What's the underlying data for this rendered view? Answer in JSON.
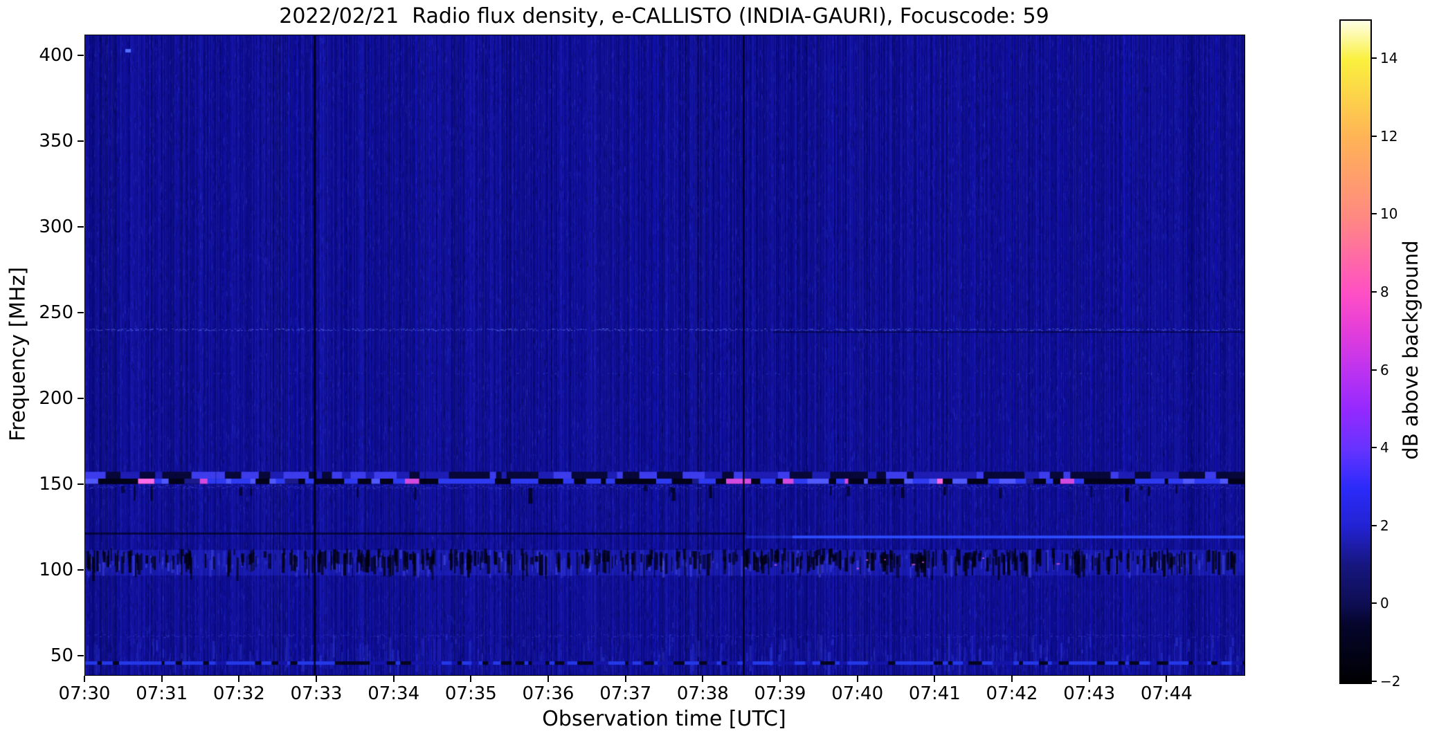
{
  "chart_data": {
    "type": "heatmap",
    "title": "2022/02/21  Radio flux density, e-CALLISTO (INDIA-GAURI), Focuscode: 59",
    "xlabel": "Observation time [UTC]",
    "ylabel": "Frequency [MHz]",
    "x_axis": {
      "min": 0,
      "max": 15,
      "unit": "minutes after 07:30 UTC"
    },
    "y_axis": {
      "min": 39,
      "max": 412,
      "unit": "MHz"
    },
    "x_ticks": [
      "07:30",
      "07:31",
      "07:32",
      "07:33",
      "07:34",
      "07:35",
      "07:36",
      "07:37",
      "07:38",
      "07:39",
      "07:40",
      "07:41",
      "07:42",
      "07:43",
      "07:44"
    ],
    "y_ticks": [
      400,
      350,
      300,
      250,
      200,
      150,
      100,
      50
    ],
    "grid": false,
    "colorbar": {
      "label": "dB above background",
      "range": [
        -2,
        15
      ],
      "ticks": [
        14,
        12,
        10,
        8,
        6,
        4,
        2,
        0,
        -2
      ],
      "tick_labels": [
        "14",
        "12",
        "10",
        "8",
        "6",
        "4",
        "2",
        "0",
        "−2"
      ],
      "colormap_name": "gnuplot2-like",
      "stops": [
        {
          "v": -2,
          "color": "#000002"
        },
        {
          "v": -0.5,
          "color": "#05052c"
        },
        {
          "v": 0,
          "color": "#0d0d52"
        },
        {
          "v": 1,
          "color": "#16167e"
        },
        {
          "v": 2,
          "color": "#2222d2"
        },
        {
          "v": 3,
          "color": "#2b2bfa"
        },
        {
          "v": 4,
          "color": "#6633ff"
        },
        {
          "v": 5,
          "color": "#9429ff"
        },
        {
          "v": 6,
          "color": "#bc33f0"
        },
        {
          "v": 7,
          "color": "#e23dda"
        },
        {
          "v": 8,
          "color": "#ff4fc4"
        },
        {
          "v": 10,
          "color": "#ff8a80"
        },
        {
          "v": 12,
          "color": "#ffb356"
        },
        {
          "v": 14,
          "color": "#faf03e"
        },
        {
          "v": 15,
          "color": "#ffffe6"
        }
      ]
    },
    "background_level_db": 0.5,
    "background_base_color": "#0a0a8a",
    "features": [
      {
        "type": "dot",
        "t": 0.52,
        "f": 404,
        "w": 8,
        "h": 5,
        "color": "#4f6fff",
        "note": "bright pixel near 404 MHz at ~07:30:30"
      },
      {
        "type": "speckle_hline",
        "f": 240.5,
        "t0": 0,
        "t1": 15,
        "density": 0.5,
        "thick": 3,
        "color": "rgba(110,130,255,0.5)",
        "note": "faint speckled line ~240 MHz"
      },
      {
        "type": "hline",
        "f": 239,
        "t0": 8.9,
        "t1": 15,
        "h": 2,
        "color": "rgba(3,3,45,0.6)",
        "note": "thin dark line ~239 MHz right half"
      },
      {
        "type": "speckle_hline",
        "f": 215,
        "t0": 0,
        "t1": 15,
        "density": 0.08,
        "thick": 2,
        "color": "rgba(90,110,255,0.3)"
      },
      {
        "type": "blocks",
        "f0": 157.5,
        "f1": 153.5,
        "step": [
          6,
          26
        ],
        "palette": [
          [
            "#07073a",
            0.4
          ],
          [
            "#1d1db4",
            0.33
          ],
          [
            "#3c3cec",
            0.27
          ]
        ],
        "note": "upper edge of 150 MHz interference band"
      },
      {
        "type": "blocks",
        "f0": 153.5,
        "f1": 150.5,
        "base": "#020218",
        "step": [
          5,
          24
        ],
        "palette": [
          [
            "#020218",
            0.36
          ],
          [
            "#2e3af2",
            0.4
          ],
          [
            "#5058ff",
            0.11
          ],
          [
            "#d44ae0",
            0.05
          ],
          [
            "#ff6ae8",
            0.02
          ],
          [
            "#1a1a8c",
            0.06
          ]
        ],
        "note": "segmented black/blue/magenta band at ~152 MHz"
      },
      {
        "type": "speckle_hline",
        "f": 148.8,
        "t0": 0,
        "t1": 15,
        "density": 0.65,
        "thick": 6,
        "color": "rgba(70,80,235,0.45)"
      },
      {
        "type": "streaks",
        "f0": 150,
        "jitter": 5,
        "count": 26,
        "wmax": 5,
        "hmin": 5,
        "hmax": 18,
        "rgb": "0,0,12",
        "a0": 0.5,
        "note": "dark dips below 150 MHz band"
      },
      {
        "type": "hline",
        "f": 121.5,
        "t0": 0,
        "t1": 8.55,
        "h": 3,
        "color": "rgba(2,2,30,0.7)",
        "note": "dark line ~121 MHz left portion"
      },
      {
        "type": "hline",
        "f": 119.5,
        "t0": 8.55,
        "t1": 9.15,
        "h": 4,
        "color": "rgba(45,75,255,0.45)"
      },
      {
        "type": "hline",
        "f": 119.5,
        "t0": 9.15,
        "t1": 15,
        "h": 4,
        "color": "#2d4bff",
        "note": "bright carrier ~119 MHz after 07:39"
      },
      {
        "type": "band_glow",
        "f0": 112,
        "f1": 97,
        "color": "rgba(48,52,235,0.30)",
        "note": "FM broadcast band 97-112 MHz"
      },
      {
        "type": "band_columns",
        "f0": 112,
        "f1": 97,
        "density": 0.5,
        "rgb": "85,95,255",
        "a0": 0.15,
        "a1": 0.3
      },
      {
        "type": "streaks",
        "f0": 113,
        "jitter": 14,
        "count": 520,
        "wmax": 4,
        "hmin": 8,
        "hmax": 26,
        "rgb": "0,0,14",
        "a0": 0.55,
        "note": "black dropout streaks in FM band"
      },
      {
        "type": "specks",
        "t0": 8.5,
        "t1": 13.5,
        "f0": 109,
        "f1": 101,
        "count": 8,
        "color": "rgba(230,90,230,0.8)"
      },
      {
        "type": "band_columns",
        "f0": 63,
        "f1": 39,
        "density": 0.4,
        "rgb": "60,72,240",
        "a0": 0.12,
        "a1": 0.25,
        "note": "brighter striping below 63 MHz"
      },
      {
        "type": "speckle_hline",
        "f": 62,
        "t0": 0,
        "t1": 15,
        "density": 0.3,
        "thick": 4,
        "color": "rgba(80,95,250,0.35)"
      },
      {
        "type": "blocks",
        "f0": 47,
        "f1": 45,
        "step": [
          4,
          16
        ],
        "palette": [
          [
            "#2438e8",
            0.45
          ],
          [
            "#05051f",
            0.3
          ],
          [
            "#1414a8",
            0.25
          ]
        ],
        "note": "dashed bright/dark row near bottom"
      },
      {
        "type": "vline",
        "t": 1.69,
        "w": 1.5,
        "color": "rgba(0,0,22,0.28)"
      },
      {
        "type": "vline",
        "t": 2.97,
        "w": 2.5,
        "color": "rgba(0,0,6,0.93)",
        "note": "strong dropout ~07:33"
      },
      {
        "type": "vline",
        "t": 4.4,
        "w": 1.5,
        "color": "rgba(0,0,22,0.32)"
      },
      {
        "type": "vline",
        "t": 8.52,
        "w": 2.5,
        "color": "rgba(0,0,6,0.93)",
        "note": "strong dropout ~07:38:30"
      }
    ]
  }
}
